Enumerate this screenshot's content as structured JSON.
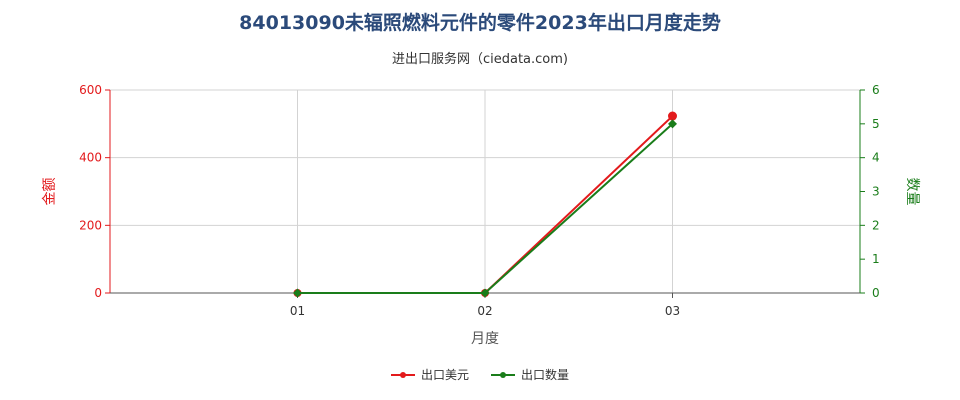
{
  "title": "84013090未辐照燃料元件的零件2023年出口月度走势",
  "subtitle": "进出口服务网（ciedata.com)",
  "chart_data": {
    "type": "line",
    "categories": [
      "01",
      "02",
      "03"
    ],
    "xlabel": "月度",
    "y_left_label": "金额",
    "y_right_label": "数量",
    "y_left_lim": [
      0,
      600
    ],
    "y_left_ticks": [
      0,
      200,
      400,
      600
    ],
    "y_right_lim": [
      0,
      6
    ],
    "y_right_ticks": [
      0,
      1,
      2,
      3,
      4,
      5,
      6
    ],
    "grid": true,
    "legend_position": "bottom-center",
    "series": [
      {
        "name": "出口美元",
        "axis": "left",
        "color": "#e31a1c",
        "marker": "circle",
        "values": [
          0,
          0,
          523
        ]
      },
      {
        "name": "出口数量",
        "axis": "right",
        "color": "#1a7d1a",
        "marker": "diamond",
        "values": [
          0,
          0,
          5
        ]
      }
    ]
  },
  "colors": {
    "left_axis": "#e31a1c",
    "right_axis": "#1a7d1a",
    "title": "#2b4a7a",
    "grid": "#d3d3d3"
  }
}
